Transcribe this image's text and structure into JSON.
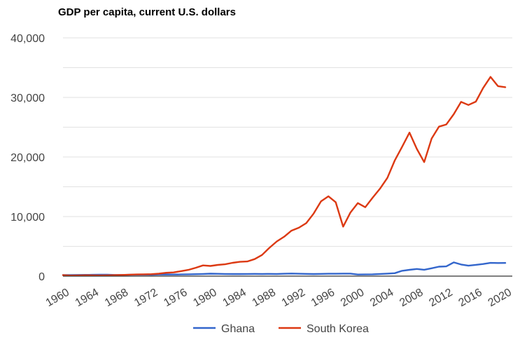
{
  "chart_data": {
    "type": "line",
    "title": "GDP per capita, current U.S. dollars",
    "xlabel": "",
    "ylabel": "",
    "ylim": [
      0,
      40000
    ],
    "yticks": [
      0,
      10000,
      20000,
      30000,
      40000
    ],
    "ytick_labels": [
      "0",
      "10,000",
      "20,000",
      "30,000",
      "40,000"
    ],
    "xlim": [
      1960,
      2020
    ],
    "xticks": [
      1960,
      1964,
      1968,
      1972,
      1976,
      1980,
      1984,
      1988,
      1992,
      1996,
      2000,
      2004,
      2008,
      2012,
      2016,
      2020
    ],
    "xtick_labels": [
      "1960",
      "1964",
      "1968",
      "1972",
      "1976",
      "1980",
      "1984",
      "1988",
      "1992",
      "1996",
      "2000",
      "2004",
      "2008",
      "2012",
      "2016",
      "2020"
    ],
    "grid": true,
    "legend_position": "bottom",
    "x": [
      1960,
      1961,
      1962,
      1963,
      1964,
      1965,
      1966,
      1967,
      1968,
      1969,
      1970,
      1971,
      1972,
      1973,
      1974,
      1975,
      1976,
      1977,
      1978,
      1979,
      1980,
      1981,
      1982,
      1983,
      1984,
      1985,
      1986,
      1987,
      1988,
      1989,
      1990,
      1991,
      1992,
      1993,
      1994,
      1995,
      1996,
      1997,
      1998,
      1999,
      2000,
      2001,
      2002,
      2003,
      2004,
      2005,
      2006,
      2007,
      2008,
      2009,
      2010,
      2011,
      2012,
      2013,
      2014,
      2015,
      2016,
      2017,
      2018,
      2019,
      2020
    ],
    "series": [
      {
        "name": "Ghana",
        "color": "#3366cc",
        "values": [
          180,
          190,
          195,
          210,
          225,
          235,
          235,
          205,
          195,
          225,
          250,
          260,
          235,
          270,
          290,
          275,
          280,
          305,
          330,
          360,
          410,
          390,
          360,
          355,
          355,
          370,
          380,
          370,
          375,
          370,
          400,
          430,
          400,
          380,
          350,
          380,
          400,
          400,
          420,
          420,
          270,
          280,
          310,
          370,
          420,
          500,
          900,
          1060,
          1200,
          1070,
          1320,
          1590,
          1630,
          2300,
          1950,
          1750,
          1900,
          2030,
          2220,
          2200,
          2210
        ]
      },
      {
        "name": "South Korea",
        "color": "#dc3912",
        "values": [
          160,
          95,
          105,
          145,
          125,
          110,
          135,
          160,
          195,
          245,
          280,
          300,
          330,
          410,
          560,
          620,
          830,
          1050,
          1400,
          1800,
          1710,
          1880,
          1990,
          2230,
          2400,
          2460,
          2860,
          3550,
          4750,
          5820,
          6610,
          7640,
          8130,
          8890,
          10500,
          12560,
          13400,
          12400,
          8300,
          10700,
          12260,
          11560,
          13160,
          14670,
          16500,
          19400,
          21700,
          24090,
          21350,
          19140,
          23080,
          25100,
          25460,
          27180,
          29250,
          28730,
          29290,
          31600,
          33450,
          31900,
          31720
        ]
      }
    ]
  }
}
